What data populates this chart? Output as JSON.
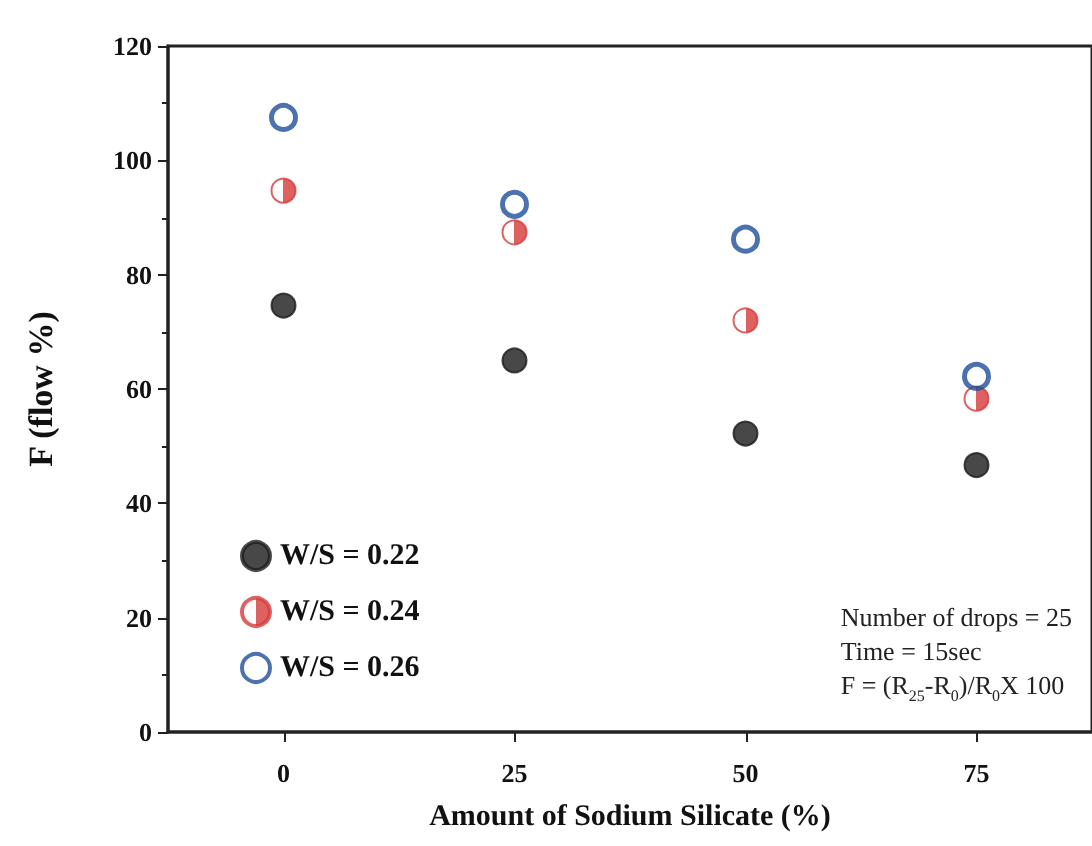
{
  "chart_data": {
    "type": "scatter",
    "xlabel": "Amount of Sodium Silicate (%)",
    "ylabel": "F (flow %)",
    "x": [
      0,
      25,
      50,
      75
    ],
    "series": [
      {
        "name": "W/S = 0.22",
        "color": "#1a1a1a",
        "values": [
          74.6,
          65,
          52.2,
          46.7
        ]
      },
      {
        "name": "W/S = 0.24",
        "color": "#d63a3a",
        "values": [
          94.7,
          87.4,
          72,
          58.3
        ]
      },
      {
        "name": "W/S = 0.26",
        "color": "#1f4e9c",
        "values": [
          107.5,
          92.3,
          86.2,
          62.2
        ]
      }
    ],
    "xlim": [
      -12.5,
      87.5
    ],
    "xticks": [
      0,
      25,
      50,
      75
    ],
    "ylim": [
      0,
      120
    ],
    "yticks": [
      0,
      20,
      40,
      60,
      80,
      100,
      120
    ],
    "legend": "bottom left",
    "grid": false,
    "marker": "circle",
    "annotations": [
      "Number of drops = 25",
      "Time = 15sec",
      "F = (R$_{25}$-R$_{0}$)/R$_{0}$X 100"
    ]
  }
}
